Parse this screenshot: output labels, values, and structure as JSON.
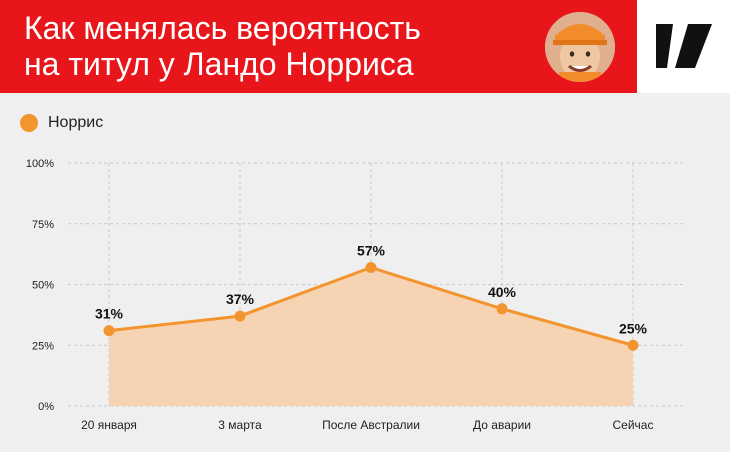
{
  "header": {
    "title": "Как менялась вероятность\nна титул у Ландо Норриса",
    "accent_color": "#e8151a"
  },
  "logo": {
    "icon": "brand-logo-icon"
  },
  "avatar": {
    "icon": "driver-portrait"
  },
  "legend": {
    "label": "Норрис",
    "color": "#f2952f"
  },
  "chart_data": {
    "type": "area",
    "title": "Как менялась вероятность на титул у Ландо Норриса",
    "categories": [
      "20 января",
      "3 марта",
      "После Австралии",
      "До аварии",
      "Сейчас"
    ],
    "series": [
      {
        "name": "Норрис",
        "values": [
          31,
          37,
          57,
          40,
          25
        ],
        "labels": [
          "31%",
          "37%",
          "57%",
          "40%",
          "25%"
        ]
      }
    ],
    "y_ticks": [
      "0%",
      "25%",
      "50%",
      "75%",
      "100%"
    ],
    "ylim": [
      0,
      100
    ],
    "grid": true,
    "legend_position": "top-left",
    "line_color": "#f2952f",
    "fill_color": "#f5d3b3"
  }
}
